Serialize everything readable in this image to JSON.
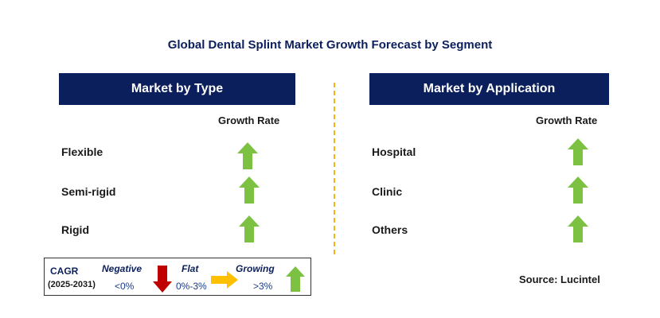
{
  "title": "Global Dental Splint Market Growth Forecast by Segment",
  "left_panel": {
    "header": "Market by Type",
    "column_label": "Growth Rate",
    "rows": [
      {
        "label": "Flexible",
        "trend": "growing"
      },
      {
        "label": "Semi-rigid",
        "trend": "growing"
      },
      {
        "label": "Rigid",
        "trend": "growing"
      }
    ]
  },
  "right_panel": {
    "header": "Market by Application",
    "column_label": "Growth Rate",
    "rows": [
      {
        "label": "Hospital",
        "trend": "growing"
      },
      {
        "label": "Clinic",
        "trend": "growing"
      },
      {
        "label": "Others",
        "trend": "growing"
      }
    ]
  },
  "legend": {
    "cagr_label": "CAGR",
    "period": "(2025-2031)",
    "negative_label": "Negative",
    "negative_range": "<0%",
    "flat_label": "Flat",
    "flat_range": "0%-3%",
    "growing_label": "Growing",
    "growing_range": ">3%"
  },
  "source": "Source: Lucintel",
  "colors": {
    "header_bg": "#0b1f5c",
    "growing": "#7dc142",
    "negative": "#c00000",
    "flat": "#ffc000",
    "divider": "#f2b521"
  },
  "icons": {
    "growing": "green-up-arrow-icon",
    "negative": "red-down-arrow-icon",
    "flat": "yellow-right-arrow-icon"
  }
}
